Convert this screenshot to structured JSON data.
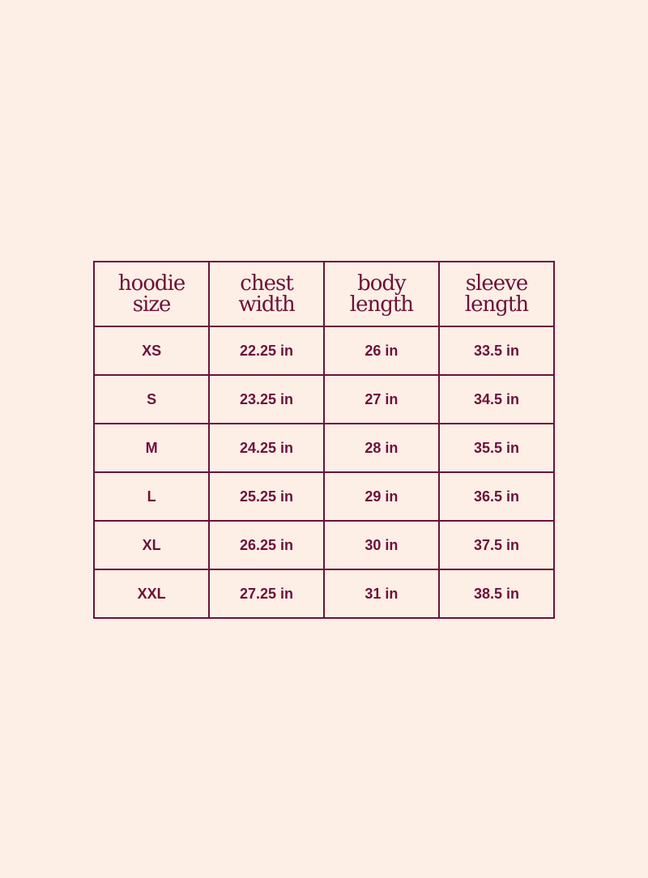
{
  "colors": {
    "background": "#fdeee6",
    "ink": "#6b1238"
  },
  "table": {
    "headers": [
      {
        "line1": "hoodie",
        "line2": "size"
      },
      {
        "line1": "chest",
        "line2": "width"
      },
      {
        "line1": "body",
        "line2": "length"
      },
      {
        "line1": "sleeve",
        "line2": "length"
      }
    ],
    "rows": [
      [
        "XS",
        "22.25 in",
        "26 in",
        "33.5 in"
      ],
      [
        "S",
        "23.25 in",
        "27 in",
        "34.5 in"
      ],
      [
        "M",
        "24.25 in",
        "28 in",
        "35.5 in"
      ],
      [
        "L",
        "25.25 in",
        "29 in",
        "36.5 in"
      ],
      [
        "XL",
        "26.25 in",
        "30 in",
        "37.5 in"
      ],
      [
        "XXL",
        "27.25 in",
        "31 in",
        "38.5 in"
      ]
    ]
  }
}
